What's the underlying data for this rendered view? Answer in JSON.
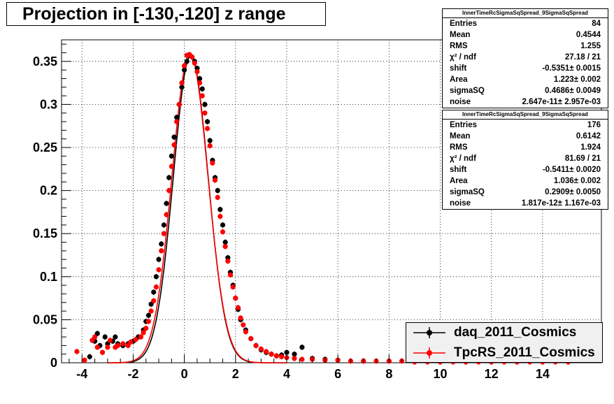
{
  "title": "Projection in [-130,-120] z range",
  "chart_data": {
    "type": "scatter",
    "xlim": [
      -4.8,
      16.3
    ],
    "ylim": [
      0,
      0.375
    ],
    "x_ticks": [
      -4,
      -2,
      0,
      2,
      4,
      6,
      8,
      10,
      12,
      14
    ],
    "x_tick_labels": [
      "-4",
      "-2",
      "0",
      "2",
      "4",
      "6",
      "8",
      "10",
      "12",
      "14"
    ],
    "y_ticks": [
      0,
      0.05,
      0.1,
      0.15,
      0.2,
      0.25,
      0.3,
      0.35
    ],
    "y_tick_labels": [
      "0",
      "0.05",
      "0.1",
      "0.15",
      "0.2",
      "0.25",
      "0.3",
      "0.35"
    ],
    "grid": true,
    "legend_position": "bottom-right",
    "series": [
      {
        "name": "daq_2011_Cosmics",
        "color": "#000000",
        "points": [
          [
            -3.7,
            0.007
          ],
          [
            -3.5,
            0.025
          ],
          [
            -3.4,
            0.034
          ],
          [
            -3.3,
            0.02
          ],
          [
            -3.1,
            0.03
          ],
          [
            -3.0,
            0.022
          ],
          [
            -2.8,
            0.025
          ],
          [
            -2.7,
            0.03
          ],
          [
            -2.6,
            0.022
          ],
          [
            -2.4,
            0.02
          ],
          [
            -2.2,
            0.022
          ],
          [
            -2.0,
            0.025
          ],
          [
            -1.8,
            0.03
          ],
          [
            -1.6,
            0.038
          ],
          [
            -1.5,
            0.048
          ],
          [
            -1.4,
            0.055
          ],
          [
            -1.3,
            0.068
          ],
          [
            -1.2,
            0.082
          ],
          [
            -1.1,
            0.1
          ],
          [
            -1.0,
            0.12
          ],
          [
            -0.9,
            0.138
          ],
          [
            -0.8,
            0.16
          ],
          [
            -0.7,
            0.185
          ],
          [
            -0.6,
            0.215
          ],
          [
            -0.5,
            0.24
          ],
          [
            -0.4,
            0.262
          ],
          [
            -0.3,
            0.285
          ],
          [
            -0.2,
            0.3
          ],
          [
            -0.1,
            0.32
          ],
          [
            0.0,
            0.34
          ],
          [
            0.1,
            0.35
          ],
          [
            0.2,
            0.357
          ],
          [
            0.3,
            0.355
          ],
          [
            0.4,
            0.35
          ],
          [
            0.5,
            0.342
          ],
          [
            0.6,
            0.33
          ],
          [
            0.7,
            0.318
          ],
          [
            0.8,
            0.3
          ],
          [
            0.9,
            0.28
          ],
          [
            1.0,
            0.258
          ],
          [
            1.1,
            0.235
          ],
          [
            1.2,
            0.215
          ],
          [
            1.3,
            0.2
          ],
          [
            1.4,
            0.178
          ],
          [
            1.5,
            0.16
          ],
          [
            1.6,
            0.14
          ],
          [
            1.7,
            0.122
          ],
          [
            1.8,
            0.105
          ],
          [
            1.9,
            0.09
          ],
          [
            2.0,
            0.075
          ],
          [
            2.1,
            0.062
          ],
          [
            2.2,
            0.05
          ],
          [
            2.4,
            0.038
          ],
          [
            2.6,
            0.028
          ],
          [
            2.8,
            0.02
          ],
          [
            3.0,
            0.015
          ],
          [
            3.2,
            0.012
          ],
          [
            3.4,
            0.01
          ],
          [
            3.6,
            0.008
          ],
          [
            3.8,
            0.009
          ],
          [
            4.0,
            0.012
          ],
          [
            4.3,
            0.01
          ],
          [
            4.6,
            0.018
          ],
          [
            5.0,
            0.005
          ],
          [
            5.5,
            0.004
          ],
          [
            6.0,
            0.003
          ],
          [
            7.0,
            0.002
          ],
          [
            8.0,
            0.002
          ],
          [
            9.0,
            0.001
          ],
          [
            10.0,
            0.001
          ],
          [
            11.0,
            0.001
          ],
          [
            12.0,
            0.001
          ],
          [
            13.0,
            0.001
          ],
          [
            14.0,
            0.001
          ],
          [
            15.0,
            0.001
          ]
        ]
      },
      {
        "name": "TpcRS_2011_Cosmics",
        "color": "#ff0000",
        "points": [
          [
            -4.2,
            0.013
          ],
          [
            -3.9,
            0.003
          ],
          [
            -3.6,
            0.026
          ],
          [
            -3.5,
            0.03
          ],
          [
            -3.4,
            0.018
          ],
          [
            -3.2,
            0.012
          ],
          [
            -3.0,
            0.018
          ],
          [
            -2.9,
            0.026
          ],
          [
            -2.7,
            0.018
          ],
          [
            -2.6,
            0.02
          ],
          [
            -2.4,
            0.022
          ],
          [
            -2.2,
            0.02
          ],
          [
            -2.1,
            0.024
          ],
          [
            -1.9,
            0.027
          ],
          [
            -1.7,
            0.03
          ],
          [
            -1.6,
            0.035
          ],
          [
            -1.5,
            0.04
          ],
          [
            -1.4,
            0.048
          ],
          [
            -1.3,
            0.06
          ],
          [
            -1.2,
            0.072
          ],
          [
            -1.1,
            0.088
          ],
          [
            -1.0,
            0.108
          ],
          [
            -0.9,
            0.13
          ],
          [
            -0.8,
            0.15
          ],
          [
            -0.7,
            0.172
          ],
          [
            -0.6,
            0.2
          ],
          [
            -0.5,
            0.228
          ],
          [
            -0.4,
            0.253
          ],
          [
            -0.3,
            0.28
          ],
          [
            -0.2,
            0.3
          ],
          [
            -0.1,
            0.325
          ],
          [
            0.0,
            0.345
          ],
          [
            0.1,
            0.357
          ],
          [
            0.2,
            0.358
          ],
          [
            0.3,
            0.355
          ],
          [
            0.4,
            0.348
          ],
          [
            0.5,
            0.338
          ],
          [
            0.6,
            0.325
          ],
          [
            0.7,
            0.31
          ],
          [
            0.8,
            0.29
          ],
          [
            0.9,
            0.272
          ],
          [
            1.0,
            0.252
          ],
          [
            1.1,
            0.232
          ],
          [
            1.2,
            0.212
          ],
          [
            1.3,
            0.192
          ],
          [
            1.4,
            0.17
          ],
          [
            1.5,
            0.152
          ],
          [
            1.6,
            0.135
          ],
          [
            1.7,
            0.118
          ],
          [
            1.8,
            0.102
          ],
          [
            1.9,
            0.088
          ],
          [
            2.0,
            0.075
          ],
          [
            2.1,
            0.064
          ],
          [
            2.2,
            0.052
          ],
          [
            2.3,
            0.044
          ],
          [
            2.4,
            0.036
          ],
          [
            2.6,
            0.028
          ],
          [
            2.8,
            0.02
          ],
          [
            3.0,
            0.016
          ],
          [
            3.2,
            0.013
          ],
          [
            3.4,
            0.01
          ],
          [
            3.6,
            0.008
          ],
          [
            3.8,
            0.007
          ],
          [
            4.0,
            0.006
          ],
          [
            4.3,
            0.005
          ],
          [
            4.6,
            0.004
          ],
          [
            5.0,
            0.004
          ],
          [
            5.5,
            0.003
          ],
          [
            6.0,
            0.003
          ],
          [
            6.5,
            0.002
          ],
          [
            7.0,
            0.002
          ],
          [
            7.5,
            0.002
          ],
          [
            8.0,
            0.002
          ],
          [
            8.5,
            0.002
          ],
          [
            9.0,
            0.001
          ],
          [
            9.5,
            0.001
          ],
          [
            10.0,
            0.001
          ],
          [
            10.5,
            0.001
          ],
          [
            11.0,
            0.001
          ],
          [
            11.5,
            0.001
          ],
          [
            12.0,
            0.001
          ],
          [
            12.5,
            0.001
          ],
          [
            13.0,
            0.001
          ],
          [
            13.5,
            0.001
          ],
          [
            14.0,
            0.001
          ],
          [
            14.5,
            0.001
          ],
          [
            15.0,
            0.001
          ]
        ]
      }
    ],
    "fit_curves": [
      {
        "series": "daq_2011_Cosmics",
        "color": "#000000",
        "amp": 0.357,
        "mean": 0.25,
        "sigma": 0.68
      },
      {
        "series": "TpcRS_2011_Cosmics",
        "color": "#ff0000",
        "amp": 0.359,
        "mean": 0.22,
        "sigma": 0.7
      }
    ]
  },
  "stats": [
    {
      "header": "InnerTimeRcSigmaSqSpread_9SigmaSqSpread",
      "rows": [
        {
          "k": "Entries",
          "v": "84"
        },
        {
          "k": "Mean",
          "v": "0.4544"
        },
        {
          "k": "RMS",
          "v": "1.255"
        },
        {
          "k": "χ² / ndf",
          "v": "27.18 / 21"
        },
        {
          "k": "shift",
          "v": "-0.5351± 0.0015"
        },
        {
          "k": "Area",
          "v": "1.223± 0.002"
        },
        {
          "k": "sigmaSQ",
          "v": "0.4686± 0.0049"
        },
        {
          "k": "noise",
          "v": "2.647e-11± 2.957e-03"
        }
      ]
    },
    {
      "header": "InnerTimeRcSigmaSqSpread_9SigmaSqSpread",
      "rows": [
        {
          "k": "Entries",
          "v": "176"
        },
        {
          "k": "Mean",
          "v": "0.6142"
        },
        {
          "k": "RMS",
          "v": "1.924"
        },
        {
          "k": "χ² / ndf",
          "v": "81.69 / 21"
        },
        {
          "k": "shift",
          "v": "-0.5411± 0.0020"
        },
        {
          "k": "Area",
          "v": "1.036± 0.002"
        },
        {
          "k": "sigmaSQ",
          "v": "0.2909± 0.0050"
        },
        {
          "k": "noise",
          "v": "1.817e-12± 1.167e-03"
        }
      ]
    }
  ],
  "legend": [
    {
      "label": "daq_2011_Cosmics",
      "color": "#000000"
    },
    {
      "label": "TpcRS_2011_Cosmics",
      "color": "#ff0000"
    }
  ]
}
